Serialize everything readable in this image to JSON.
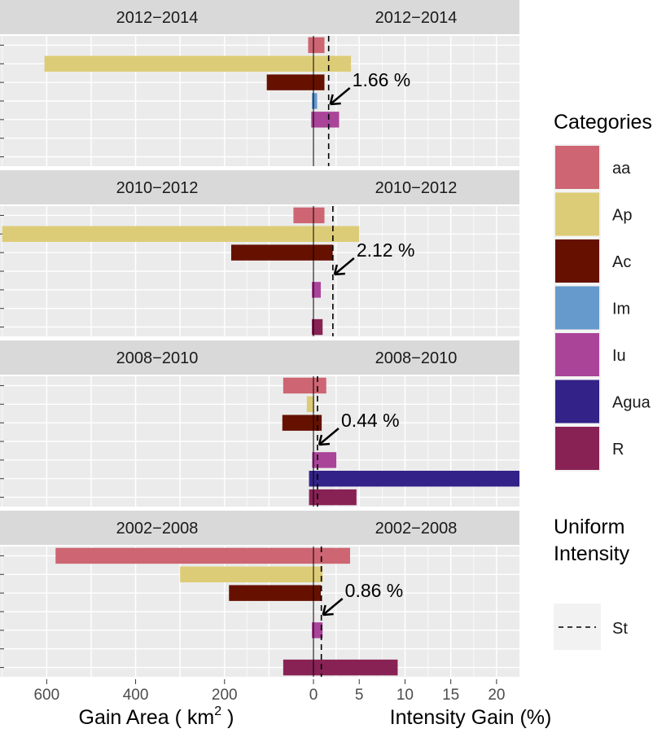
{
  "chart_data": {
    "type": "bar",
    "orientation": "horizontal",
    "layout": "faceted, two mirrored panels per period (gain area left, intensity gain right)",
    "left_axis": {
      "label_prefix": "Gain Area ( km",
      "label_superscript": "2",
      "label_suffix": " )",
      "ticks": [
        600,
        400,
        200,
        0
      ],
      "xlim": [
        705,
        0
      ],
      "reversed": true
    },
    "right_axis": {
      "label": "Intensity Gain (%)",
      "ticks": [
        0,
        5,
        10,
        15,
        20
      ],
      "xlim": [
        0,
        22.5
      ]
    },
    "grid": true,
    "legend": {
      "position": "right",
      "title": "Categories",
      "items": [
        {
          "name": "aa",
          "color": "#CD6572"
        },
        {
          "name": "Ap",
          "color": "#DDCC77"
        },
        {
          "name": "Ac",
          "color": "#661100"
        },
        {
          "name": "Im",
          "color": "#6699CC"
        },
        {
          "name": "Iu",
          "color": "#AA4499"
        },
        {
          "name": "Agua",
          "color": "#332288"
        },
        {
          "name": "R",
          "color": "#882255"
        }
      ],
      "line_title_1": "Uniform",
      "line_title_2": "Intensity",
      "line_item": "St"
    },
    "panels": [
      {
        "period": "2012−2014",
        "uniform_intensity": 1.66,
        "uniform_label": "1.66 %",
        "area": {
          "aa": 12,
          "Ap": 605,
          "Ac": 105,
          "Im": 0,
          "Iu": 5,
          "Agua": null,
          "R": null
        },
        "intensity": {
          "aa": 1.2,
          "Ap": 4.1,
          "Ac": 1.2,
          "Im": 0.4,
          "Iu": 2.8,
          "Agua": null,
          "R": null
        }
      },
      {
        "period": "2010−2012",
        "uniform_intensity": 2.12,
        "uniform_label": "2.12 %",
        "area": {
          "aa": 45,
          "Ap": 700,
          "Ac": 185,
          "Im": null,
          "Iu": 0,
          "Agua": null,
          "R": 0
        },
        "intensity": {
          "aa": 1.2,
          "Ap": 5.0,
          "Ac": 2.1,
          "Im": null,
          "Iu": 0.8,
          "Agua": null,
          "R": 1.0
        }
      },
      {
        "period": "2008−2010",
        "uniform_intensity": 0.44,
        "uniform_label": "0.44 %",
        "area": {
          "aa": 68,
          "Ap": 15,
          "Ac": 70,
          "Im": null,
          "Iu": 3,
          "Agua": 10,
          "R": 10
        },
        "intensity": {
          "aa": 1.4,
          "Ap": 0,
          "Ac": 0.9,
          "Im": null,
          "Iu": 2.5,
          "Agua": 22.5,
          "R": 4.7
        }
      },
      {
        "period": "2002−2008",
        "uniform_intensity": 0.86,
        "uniform_label": "0.86 %",
        "area": {
          "aa": 580,
          "Ap": 300,
          "Ac": 190,
          "Im": null,
          "Iu": 0,
          "Agua": null,
          "R": 68
        },
        "intensity": {
          "aa": 4.0,
          "Ap": 1.0,
          "Ac": 0.8,
          "Im": null,
          "Iu": 1.0,
          "Agua": null,
          "R": 9.2
        }
      }
    ]
  }
}
